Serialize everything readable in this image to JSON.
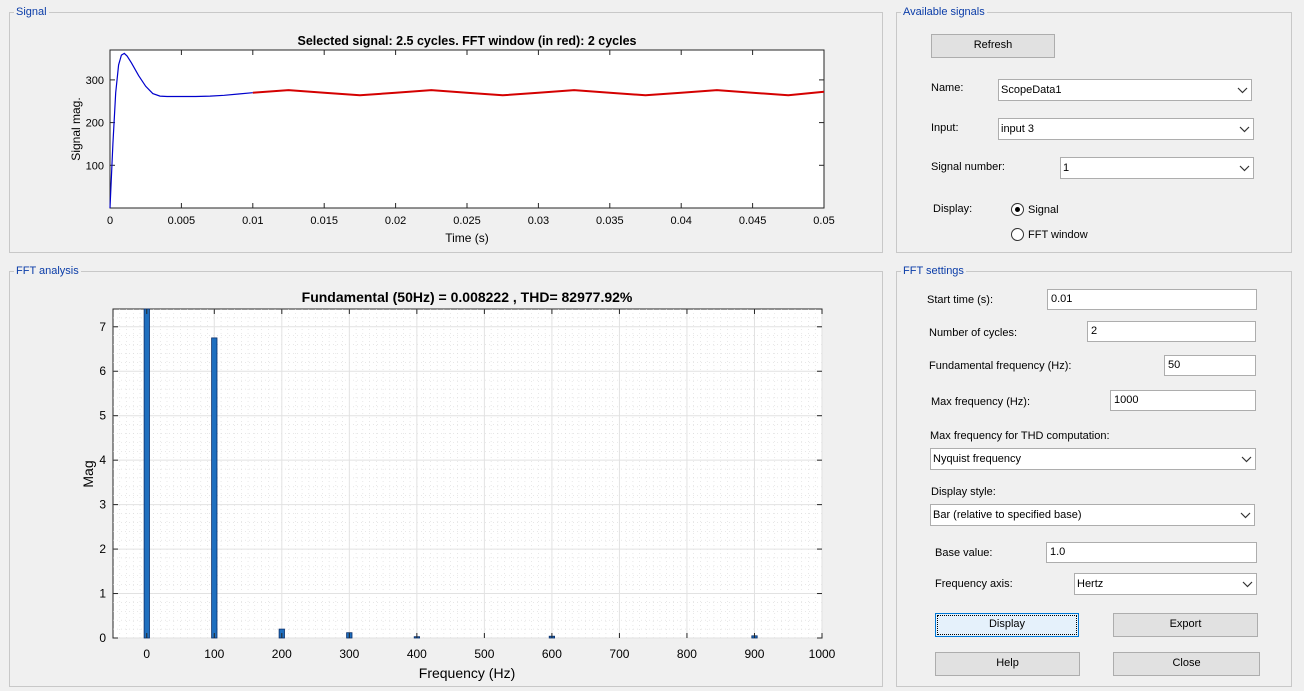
{
  "signal_panel": {
    "title": "Signal",
    "plot_title": "Selected signal: 2.5 cycles. FFT window (in red): 2 cycles",
    "xlabel": "Time (s)",
    "ylabel": "Signal mag.",
    "xticks": [
      "0",
      "0.005",
      "0.01",
      "0.015",
      "0.02",
      "0.025",
      "0.03",
      "0.035",
      "0.04",
      "0.045",
      "0.05"
    ],
    "yticks": [
      "100",
      "200",
      "300"
    ],
    "colors": {
      "selected": "#0000cc",
      "fft_window": "#d40000"
    }
  },
  "fft_panel": {
    "title": "FFT analysis",
    "plot_title": "Fundamental (50Hz) = 0.008222 , THD= 82977.92%",
    "xlabel": "Frequency (Hz)",
    "ylabel": "Mag",
    "xticks": [
      "0",
      "100",
      "200",
      "300",
      "400",
      "500",
      "600",
      "700",
      "800",
      "900",
      "1000"
    ],
    "yticks": [
      "0",
      "1",
      "2",
      "3",
      "4",
      "5",
      "6",
      "7"
    ]
  },
  "chart_data": [
    {
      "type": "line",
      "title": "Selected signal: 2.5 cycles. FFT window (in red): 2 cycles",
      "xlabel": "Time (s)",
      "ylabel": "Signal mag.",
      "xlim": [
        0,
        0.05
      ],
      "ylim": [
        0,
        370
      ],
      "series": [
        {
          "name": "Selected signal",
          "color": "#0000cc",
          "x": [
            0,
            0.0002,
            0.0004,
            0.0006,
            0.0008,
            0.001,
            0.0012,
            0.0015,
            0.002,
            0.0025,
            0.003,
            0.0035,
            0.004,
            0.005,
            0.006,
            0.007,
            0.008,
            0.009,
            0.01
          ],
          "y": [
            0,
            150,
            270,
            335,
            358,
            362,
            356,
            340,
            310,
            285,
            268,
            262,
            261,
            261,
            261,
            262,
            264,
            267,
            270
          ]
        },
        {
          "name": "FFT window",
          "color": "#d40000",
          "x": [
            0.01,
            0.0125,
            0.015,
            0.0175,
            0.02,
            0.0225,
            0.025,
            0.0275,
            0.03,
            0.0325,
            0.035,
            0.0375,
            0.04,
            0.0425,
            0.045,
            0.0475,
            0.05
          ],
          "y": [
            270,
            276,
            270,
            264,
            270,
            276,
            270,
            264,
            270,
            276,
            270,
            264,
            270,
            276,
            270,
            264,
            272
          ]
        }
      ]
    },
    {
      "type": "bar",
      "title": "Fundamental (50Hz) = 0.008222 , THD= 82977.92%",
      "xlabel": "Frequency (Hz)",
      "ylabel": "Mag",
      "xlim": [
        -50,
        1000
      ],
      "ylim": [
        0,
        7.4
      ],
      "color": "#1f6fbf",
      "x": [
        0,
        100,
        200,
        300,
        400,
        600,
        900
      ],
      "values": [
        7.4,
        6.75,
        0.2,
        0.12,
        0.03,
        0.04,
        0.05
      ]
    }
  ],
  "available_signals": {
    "title": "Available signals",
    "refresh_label": "Refresh",
    "name_label": "Name:",
    "name_value": "ScopeData1",
    "input_label": "Input:",
    "input_value": "input 3",
    "signal_number_label": "Signal number:",
    "signal_number_value": "1",
    "display_label": "Display:",
    "display_options": [
      "Signal",
      "FFT window"
    ],
    "display_selected": "Signal"
  },
  "fft_settings": {
    "title": "FFT settings",
    "start_time_label": "Start time (s):",
    "start_time_value": "0.01",
    "cycles_label": "Number of cycles:",
    "cycles_value": "2",
    "fund_freq_label": "Fundamental frequency (Hz):",
    "fund_freq_value": "50",
    "max_freq_label": "Max frequency (Hz):",
    "max_freq_value": "1000",
    "thd_max_label": "Max frequency for THD computation:",
    "thd_max_value": "Nyquist frequency",
    "display_style_label": "Display style:",
    "display_style_value": "Bar (relative to specified base)",
    "base_value_label": "Base value:",
    "base_value_value": "1.0",
    "freq_axis_label": "Frequency axis:",
    "freq_axis_value": "Hertz",
    "display_button": "Display",
    "export_button": "Export",
    "help_button": "Help",
    "close_button": "Close"
  }
}
